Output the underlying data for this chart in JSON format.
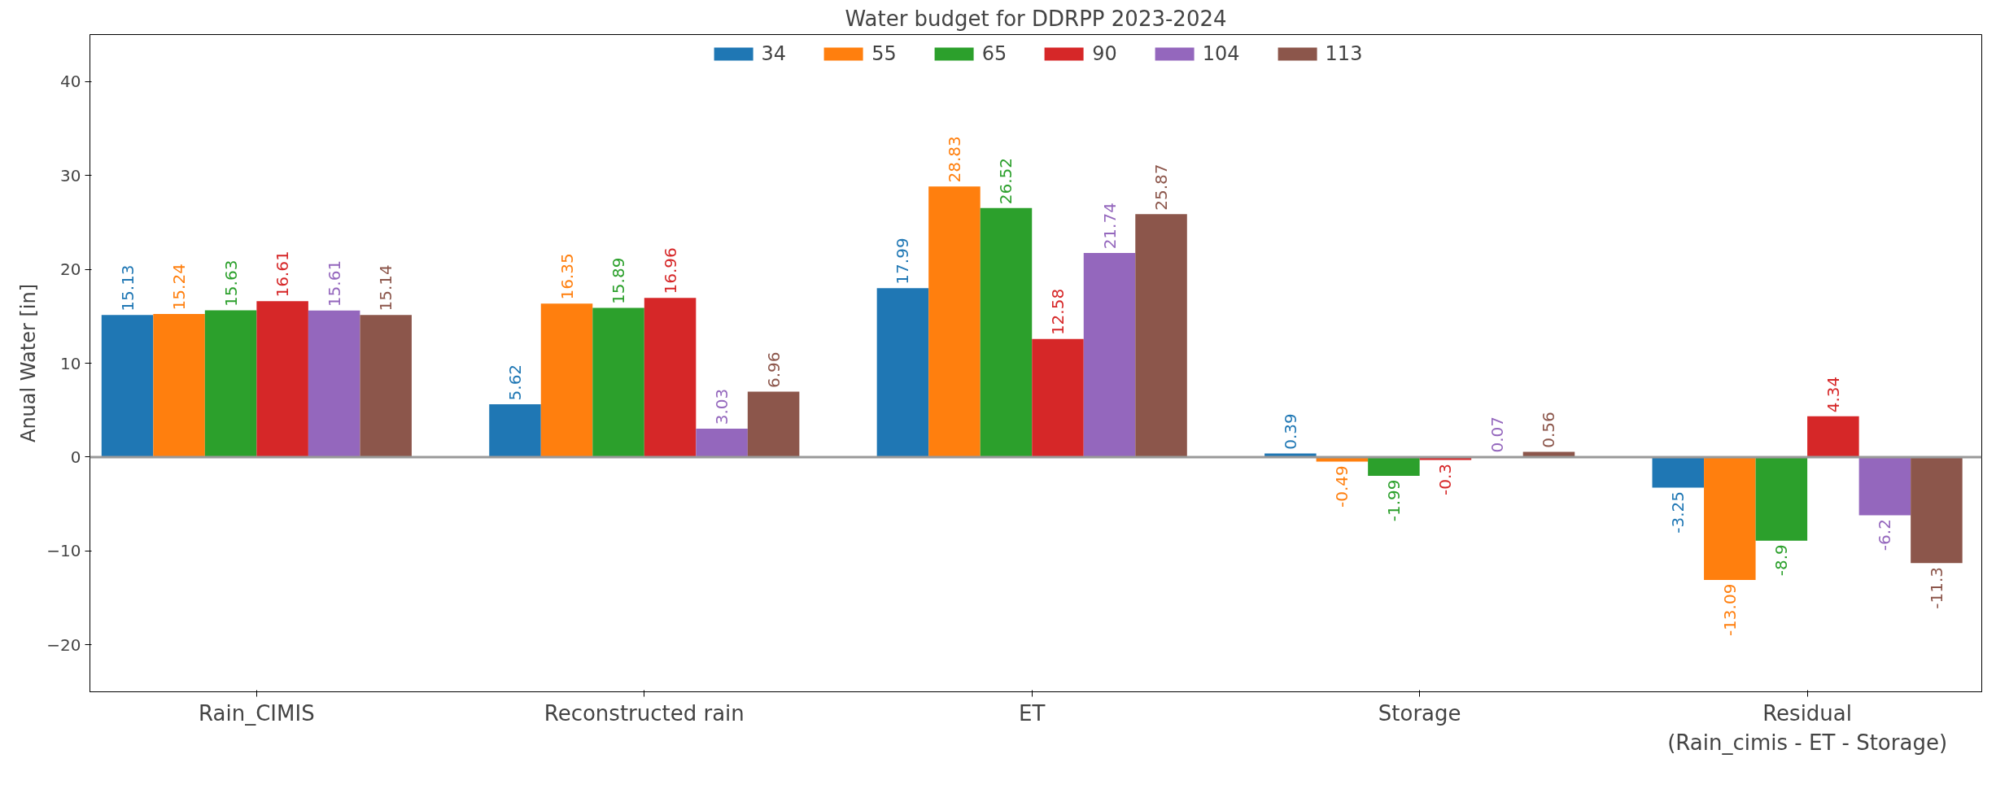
{
  "chart_data": {
    "type": "bar",
    "title": "Water budget for DDRPP 2023-2024",
    "ylabel": "Anual Water [in]",
    "categories": [
      "Rain_CIMIS",
      "Reconstructed rain",
      "ET",
      "Storage",
      "Residual\n(Rain_cimis - ET - Storage)"
    ],
    "series": [
      {
        "name": "34",
        "color": "#1f77b4",
        "values": [
          15.13,
          5.62,
          17.99,
          0.39,
          -3.25
        ]
      },
      {
        "name": "55",
        "color": "#ff7f0e",
        "values": [
          15.24,
          16.35,
          28.83,
          -0.49,
          -13.09
        ]
      },
      {
        "name": "65",
        "color": "#2ca02c",
        "values": [
          15.63,
          15.89,
          26.52,
          -1.99,
          -8.9
        ]
      },
      {
        "name": "90",
        "color": "#d62728",
        "values": [
          16.61,
          16.96,
          12.58,
          -0.3,
          4.34
        ]
      },
      {
        "name": "104",
        "color": "#9467bd",
        "values": [
          15.61,
          3.03,
          21.74,
          0.07,
          -6.2
        ]
      },
      {
        "name": "113",
        "color": "#8c564b",
        "values": [
          15.14,
          6.96,
          25.87,
          0.56,
          -11.3
        ]
      }
    ],
    "ylim": [
      -25,
      45
    ],
    "yticks": [
      -20,
      -10,
      0,
      10,
      20,
      30,
      40
    ],
    "ref_lines": [
      {
        "axis": "y",
        "value": 0,
        "color": "#999999"
      }
    ],
    "data_labels": true,
    "legend": "top",
    "grid": false
  }
}
